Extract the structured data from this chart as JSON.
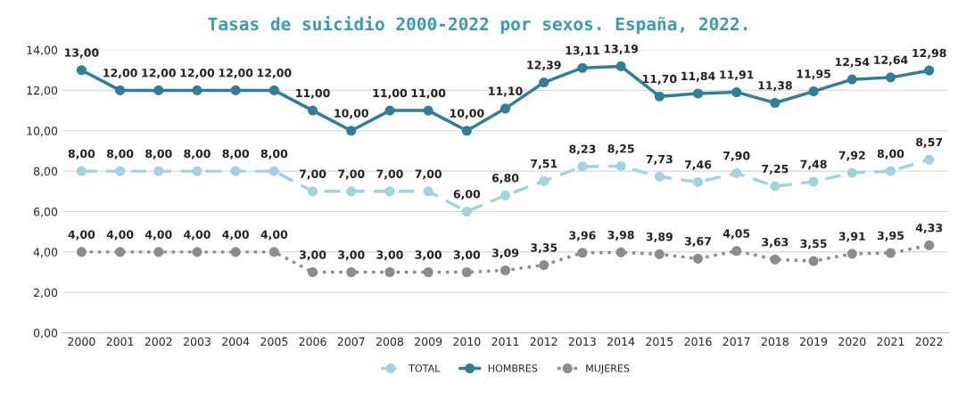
{
  "chart_data": {
    "type": "line",
    "title": "Tasas de suicidio 2000-2022 por sexos. España, 2022.",
    "categories": [
      "2000",
      "2001",
      "2002",
      "2003",
      "2004",
      "2005",
      "2006",
      "2007",
      "2008",
      "2009",
      "2010",
      "2011",
      "2012",
      "2013",
      "2014",
      "2015",
      "2016",
      "2017",
      "2018",
      "2019",
      "2020",
      "2021",
      "2022"
    ],
    "series": [
      {
        "name": "TOTAL",
        "color": "#9fd3de",
        "line_style": "dashed",
        "marker": "circle",
        "values": [
          8,
          8,
          8,
          8,
          8,
          8,
          7,
          7,
          7,
          7,
          6,
          6.8,
          7.51,
          8.23,
          8.25,
          7.73,
          7.46,
          7.9,
          7.25,
          7.48,
          7.92,
          8.0,
          8.57
        ],
        "value_labels": [
          "8,00",
          "8,00",
          "8,00",
          "8,00",
          "8,00",
          "8,00",
          "7,00",
          "7,00",
          "7,00",
          "7,00",
          "6,00",
          "6,80",
          "7,51",
          "8,23",
          "8,25",
          "7,73",
          "7,46",
          "7,90",
          "7,25",
          "7,48",
          "7,92",
          "8,00",
          "8,57"
        ]
      },
      {
        "name": "HOMBRES",
        "color": "#2f7f98",
        "line_style": "solid",
        "marker": "circle",
        "values": [
          13,
          12,
          12,
          12,
          12,
          12,
          11,
          10,
          11,
          11,
          10,
          11.1,
          12.39,
          13.11,
          13.19,
          11.7,
          11.84,
          11.91,
          11.38,
          11.95,
          12.54,
          12.64,
          12.98
        ],
        "value_labels": [
          "13,00",
          "12,00",
          "12,00",
          "12,00",
          "12,00",
          "12,00",
          "11,00",
          "10,00",
          "11,00",
          "11,00",
          "10,00",
          "11,10",
          "12,39",
          "13,11",
          "13,19",
          "11,70",
          "11,84",
          "11,91",
          "11,38",
          "11,95",
          "12,54",
          "12,64",
          "12,98"
        ]
      },
      {
        "name": "MUJERES",
        "color": "#8c8c8c",
        "line_style": "dotted",
        "marker": "circle",
        "values": [
          4,
          4,
          4,
          4,
          4,
          4,
          3,
          3,
          3,
          3,
          3,
          3.09,
          3.35,
          3.96,
          3.98,
          3.89,
          3.67,
          4.05,
          3.63,
          3.55,
          3.91,
          3.95,
          4.33
        ],
        "value_labels": [
          "4,00",
          "4,00",
          "4,00",
          "4,00",
          "4,00",
          "4,00",
          "3,00",
          "3,00",
          "3,00",
          "3,00",
          "3,00",
          "3,09",
          "3,35",
          "3,96",
          "3,98",
          "3,89",
          "3,67",
          "4,05",
          "3,63",
          "3,55",
          "3,91",
          "3,95",
          "4,33"
        ]
      }
    ],
    "ylim": [
      0,
      14
    ],
    "yticks": [
      {
        "value": 0,
        "label": "0,00"
      },
      {
        "value": 2,
        "label": "2,00"
      },
      {
        "value": 4,
        "label": "4,00"
      },
      {
        "value": 6,
        "label": "6,00"
      },
      {
        "value": 8,
        "label": "8,00"
      },
      {
        "value": 10,
        "label": "10,00"
      },
      {
        "value": 12,
        "label": "12,00"
      },
      {
        "value": 14,
        "label": "14,00"
      }
    ],
    "grid": "y",
    "legend": "bottom"
  }
}
